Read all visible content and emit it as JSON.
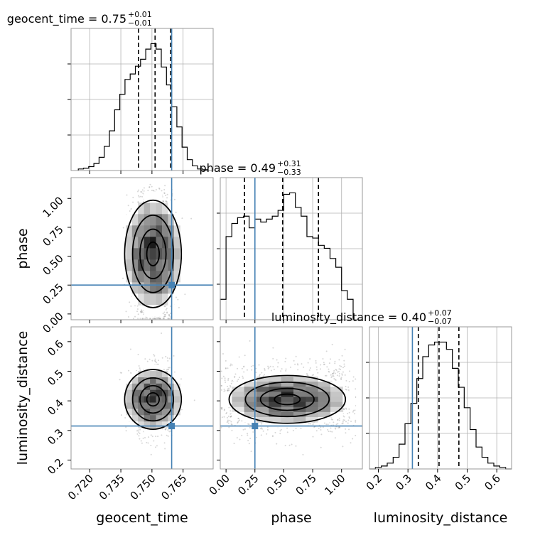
{
  "chart_data": {
    "type": "corner",
    "parameters": [
      {
        "name": "geocent_time",
        "range": [
          0.711,
          0.7795
        ],
        "ticks": [
          0.72,
          0.735,
          0.75,
          0.765
        ],
        "tick_labels": [
          "0.720",
          "0.735",
          "0.750",
          "0.765"
        ],
        "truth": 0.7595,
        "quantiles": [
          0.7435,
          0.7515,
          0.759
        ],
        "title": "geocent_time = 0.75",
        "title_plus": "+0.01",
        "title_minus": "−0.01",
        "hist_edges": [
          0.7145,
          0.717,
          0.7195,
          0.722,
          0.7245,
          0.727,
          0.7295,
          0.732,
          0.7345,
          0.737,
          0.7395,
          0.742,
          0.7445,
          0.747,
          0.7495,
          0.752,
          0.7545,
          0.757,
          0.7595,
          0.762,
          0.7645,
          0.767,
          0.7695,
          0.772,
          0.7745,
          0.777
        ],
        "hist_values": [
          0.01,
          0.015,
          0.025,
          0.045,
          0.085,
          0.155,
          0.255,
          0.39,
          0.49,
          0.585,
          0.62,
          0.67,
          0.715,
          0.78,
          0.815,
          0.78,
          0.665,
          0.55,
          0.41,
          0.28,
          0.15,
          0.07,
          0.03,
          0.01,
          0.005
        ]
      },
      {
        "name": "phase",
        "range": [
          -0.05,
          1.18
        ],
        "ticks": [
          0.0,
          0.25,
          0.5,
          0.75,
          1.0
        ],
        "tick_labels": [
          "0.00",
          "0.25",
          "0.50",
          "0.75",
          "1.00"
        ],
        "truth": 0.25,
        "quantiles": [
          0.16,
          0.49,
          0.8
        ],
        "title": "phase = 0.49",
        "title_plus": "+0.31",
        "title_minus": "−0.33",
        "hist_edges": [
          -0.05,
          0.0,
          0.05,
          0.1,
          0.15,
          0.2,
          0.25,
          0.3,
          0.35,
          0.4,
          0.45,
          0.5,
          0.55,
          0.6,
          0.65,
          0.7,
          0.75,
          0.8,
          0.85,
          0.9,
          0.95,
          1.0,
          1.05,
          1.1,
          1.18
        ],
        "hist_values": [
          0.14,
          0.57,
          0.66,
          0.7,
          0.71,
          0.63,
          0.69,
          0.67,
          0.69,
          0.71,
          0.75,
          0.86,
          0.87,
          0.77,
          0.71,
          0.57,
          0.56,
          0.51,
          0.49,
          0.42,
          0.36,
          0.2,
          0.14,
          0.0
        ]
      },
      {
        "name": "luminosity_distance",
        "range": [
          0.17,
          0.65
        ],
        "ticks": [
          0.2,
          0.3,
          0.4,
          0.5,
          0.6
        ],
        "tick_labels": [
          "0.2",
          "0.3",
          "0.4",
          "0.5",
          "0.6"
        ],
        "truth": 0.315,
        "quantiles": [
          0.335,
          0.405,
          0.472
        ],
        "title": "luminosity_distance = 0.40",
        "title_plus": "+0.07",
        "title_minus": "−0.07",
        "hist_edges": [
          0.17,
          0.19,
          0.21,
          0.23,
          0.25,
          0.27,
          0.29,
          0.31,
          0.33,
          0.35,
          0.37,
          0.39,
          0.41,
          0.43,
          0.45,
          0.47,
          0.49,
          0.51,
          0.53,
          0.55,
          0.57,
          0.59,
          0.61,
          0.63,
          0.65
        ],
        "hist_values": [
          0.0,
          0.01,
          0.02,
          0.04,
          0.08,
          0.17,
          0.31,
          0.45,
          0.62,
          0.77,
          0.85,
          0.87,
          0.87,
          0.82,
          0.69,
          0.56,
          0.42,
          0.27,
          0.15,
          0.08,
          0.04,
          0.02,
          0.01,
          0.0
        ]
      }
    ],
    "axis_labels": [
      "geocent_time",
      "phase",
      "luminosity_distance"
    ],
    "truth_color": "#4682b4",
    "quantile_color": "#000000",
    "grid": true
  }
}
